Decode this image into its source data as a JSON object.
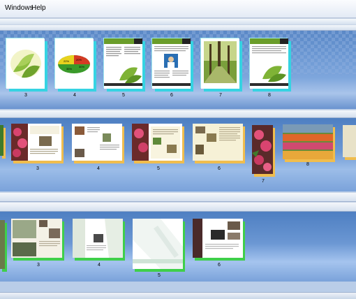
{
  "menu": {
    "windows": "Windows",
    "help": "Help"
  },
  "strip1": {
    "pages": [
      "3",
      "4",
      "5",
      "6",
      "7",
      "8"
    ]
  },
  "strip2": {
    "pages": [
      "3",
      "4",
      "5",
      "6",
      "7",
      "8"
    ]
  },
  "strip3": {
    "pages": [
      "3",
      "4",
      "5",
      "6"
    ]
  },
  "pie_labels": {
    "a": "22%",
    "b": "20%",
    "c": "35%",
    "d": "30%"
  },
  "colors": {
    "cyan_border": "#36d3e2",
    "gold_border": "#f0bd4e",
    "green_border": "#3fcf4a",
    "panel_blue": "#6b97d3"
  }
}
